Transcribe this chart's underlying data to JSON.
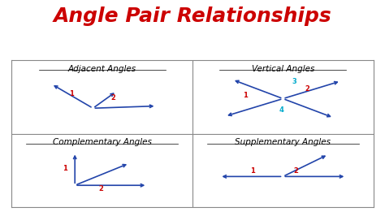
{
  "title": "Angle Pair Relationships",
  "title_color": "#cc0000",
  "title_fontsize": 18,
  "bg_color": "#ffffff",
  "grid_color": "#888888",
  "line_color": "#2244aa",
  "label_color_red": "#cc0000",
  "label_color_cyan": "#00aacc",
  "panel_titles": [
    "Adjacent Angles",
    "Vertical Angles",
    "Complementary Angles",
    "Supplementary Angles"
  ],
  "panel_title_fontsize": 7.5,
  "label_fontsize": 6,
  "arrow_lw": 1.2,
  "arrow_ms": 6
}
